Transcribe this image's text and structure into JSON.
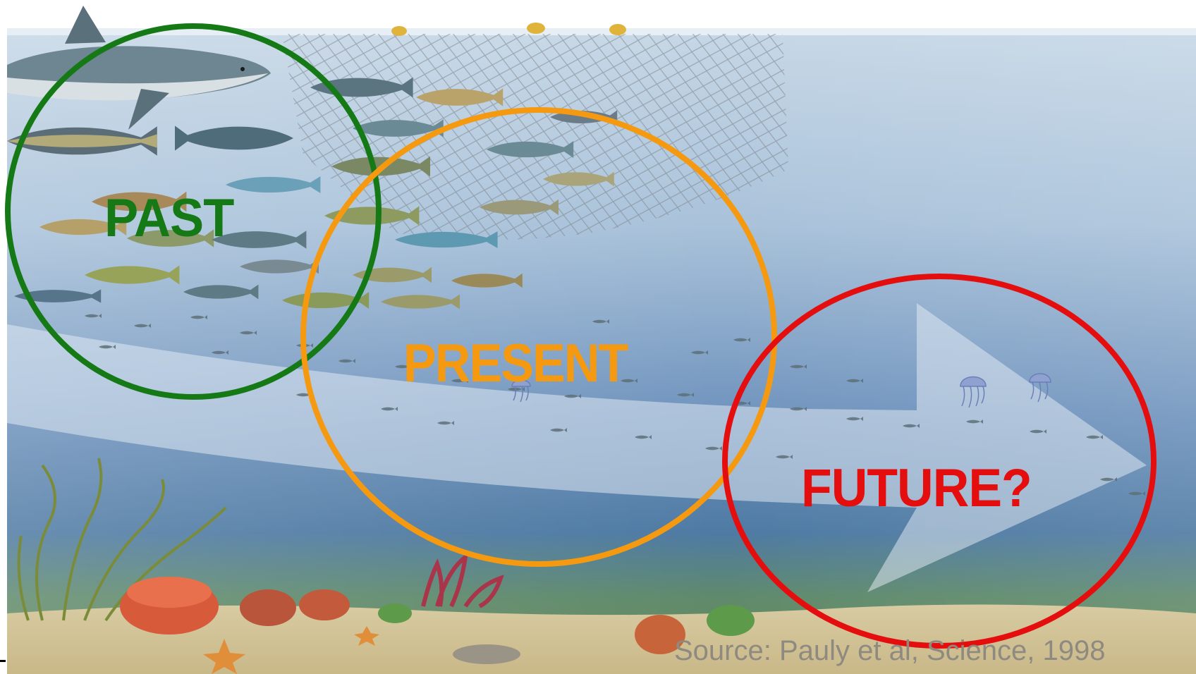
{
  "labels": {
    "past": "PAST",
    "present": "PRESENT",
    "future": "FUTURE?"
  },
  "source": "Source: Pauly et al, Science, 1998",
  "colors": {
    "past": "#157a16",
    "present": "#f59a10",
    "future": "#e50e0e",
    "source_text": "#8f8a80"
  },
  "scene": {
    "subjects": [
      "shark",
      "tuna",
      "mackerel",
      "small-fish",
      "jellyfish",
      "fishing-net",
      "coral",
      "seaweed",
      "starfish",
      "sea-anemone"
    ]
  }
}
